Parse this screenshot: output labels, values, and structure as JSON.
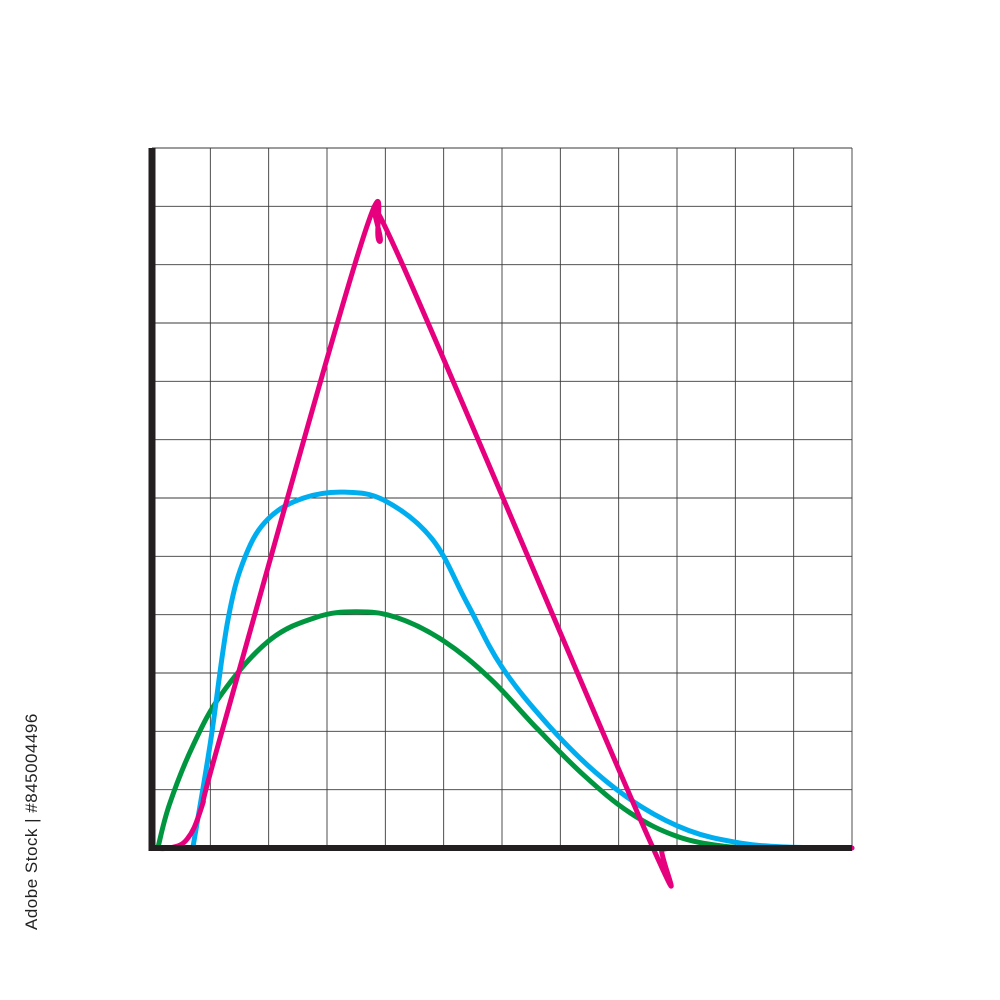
{
  "stock_id": "845004496",
  "stock_brand": "Adobe Stock",
  "colors": {
    "grid": "#3a3a3a",
    "axis": "#231f20",
    "magenta": "#e6007e",
    "cyan": "#00aeef",
    "green": "#00963f"
  },
  "chart_data": {
    "type": "line",
    "title": "",
    "xlabel": "",
    "ylabel": "",
    "xlim": [
      0,
      12
    ],
    "ylim": [
      0,
      12
    ],
    "grid": true,
    "legend": "none",
    "series": [
      {
        "color": "#e6007e",
        "x": [
          0,
          0.3,
          0.6,
          0.85,
          1.2,
          3.6,
          3.9,
          4.25,
          8.5,
          8.75,
          9.2,
          12
        ],
        "y": [
          0,
          0,
          0.15,
          0.7,
          2.0,
          10.4,
          10.4,
          10.1,
          0.2,
          0,
          0,
          0
        ]
      },
      {
        "color": "#00aeef",
        "x": [
          0.7,
          1.0,
          1.3,
          1.6,
          2.0,
          2.6,
          3.3,
          4.0,
          4.8,
          5.4,
          6.0,
          6.8,
          7.6,
          8.4,
          9.2,
          10.0,
          10.8,
          12
        ],
        "y": [
          0,
          1.8,
          3.9,
          5.0,
          5.65,
          6.0,
          6.1,
          5.95,
          5.3,
          4.2,
          3.1,
          2.1,
          1.3,
          0.7,
          0.3,
          0.1,
          0.02,
          0
        ]
      },
      {
        "color": "#00963f",
        "x": [
          0.1,
          0.3,
          0.7,
          1.2,
          2.0,
          2.8,
          3.5,
          4.2,
          5.0,
          5.8,
          6.6,
          7.4,
          8.2,
          9.0,
          9.8,
          10.4
        ],
        "y": [
          0,
          0.75,
          1.75,
          2.65,
          3.55,
          3.95,
          4.05,
          3.95,
          3.55,
          2.9,
          2.05,
          1.25,
          0.6,
          0.2,
          0.03,
          0
        ]
      }
    ]
  }
}
